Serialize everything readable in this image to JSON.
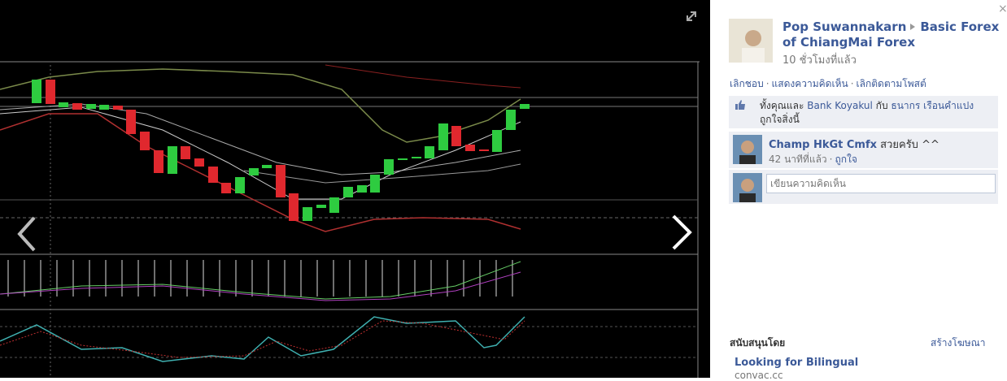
{
  "viewer": {
    "close": "×"
  },
  "post": {
    "author": "Pop Suwannakarn",
    "album": "Basic Forex of ChiangMai Forex",
    "time": "10 ชั่วโมงที่แล้ว",
    "separator": "·",
    "actions": [
      "เลิกชอบ",
      "แสดงความคิดเห็น",
      "เลิกติดตามโพสต์"
    ],
    "likes": {
      "prefix": "ทั้งคุณและ",
      "people": [
        "Bank Koyakul",
        "ธนากร เรือนคำแปง"
      ],
      "joiner": "กับ",
      "suffix": "ถูกใจสิ่งนี้"
    },
    "comments": [
      {
        "author": "Champ HkGt Cmfx",
        "text": "สวยครับ ^^",
        "time": "42 นาทีที่แล้ว",
        "action": "ถูกใจ"
      }
    ],
    "comment_placeholder": "เขียนความคิดเห็น"
  },
  "ads": {
    "label": "สนับสนุนโดย",
    "create": "สร้างโฆษณา",
    "items": [
      {
        "title": "Looking for Bilingual",
        "domain": "convac.cc"
      }
    ]
  }
}
